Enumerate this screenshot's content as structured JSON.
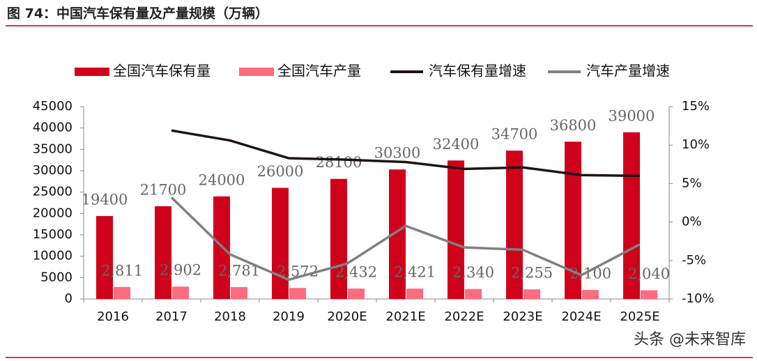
{
  "chart_data": {
    "type": "bar",
    "title": "图 74：中国汽车保有量及产量规模（万辆）",
    "categories": [
      "2016",
      "2017",
      "2018",
      "2019",
      "2020E",
      "2021E",
      "2022E",
      "2023E",
      "2024E",
      "2025E"
    ],
    "series": [
      {
        "name": "全国汽车保有量",
        "color": "#d0021b",
        "type": "bar",
        "values": [
          19400,
          21700,
          24000,
          26000,
          28100,
          30300,
          32400,
          34700,
          36800,
          39000
        ]
      },
      {
        "name": "全国汽车产量",
        "color": "#ff6b7f",
        "type": "bar",
        "values": [
          2811,
          2902,
          2781,
          2572,
          2432,
          2421,
          2340,
          2255,
          2100,
          2040
        ],
        "value_labels": [
          "2,811",
          "2,902",
          "2,781",
          "2,572",
          "2,432",
          "2,421",
          "2,340",
          "2,255",
          "2,100",
          "2,040"
        ]
      },
      {
        "name": "汽车保有量增速",
        "color": "#1e1414",
        "type": "line",
        "axis": "y2",
        "values": [
          null,
          11.9,
          10.6,
          8.3,
          8.1,
          7.8,
          6.9,
          7.1,
          6.1,
          6.0
        ]
      },
      {
        "name": "汽车产量增速",
        "color": "#808080",
        "type": "line",
        "axis": "y2",
        "values": [
          null,
          3.2,
          -4.2,
          -7.5,
          -5.4,
          -0.5,
          -3.3,
          -3.6,
          -6.9,
          -2.9
        ]
      }
    ],
    "ylim": [
      0,
      45000
    ],
    "yticks": [
      0,
      5000,
      10000,
      15000,
      20000,
      25000,
      30000,
      35000,
      40000,
      45000
    ],
    "y2lim": [
      -10,
      15
    ],
    "y2ticks": [
      {
        "value": -10,
        "label": "-10%"
      },
      {
        "value": -5,
        "label": "-5%"
      },
      {
        "value": 0,
        "label": "0%"
      },
      {
        "value": 5,
        "label": "5%"
      },
      {
        "value": 10,
        "label": "10%"
      },
      {
        "value": 15,
        "label": "15%"
      }
    ],
    "legend": "top"
  },
  "watermark": "头条 @未来智库"
}
